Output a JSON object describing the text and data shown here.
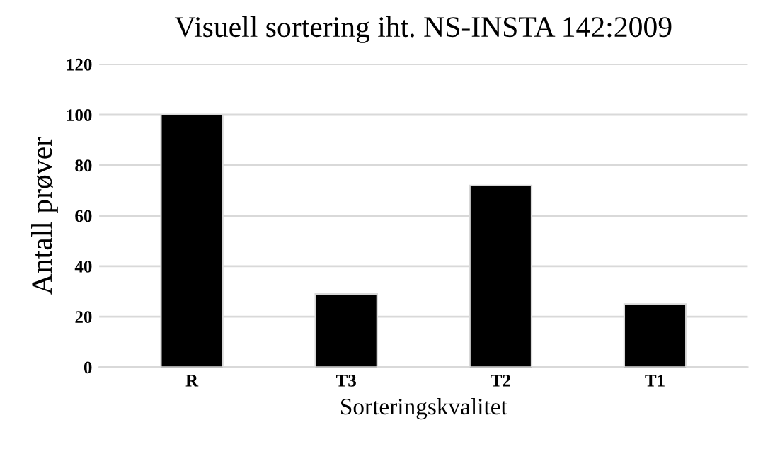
{
  "chart_data": {
    "type": "bar",
    "title": "Visuell sortering iht. NS-INSTA 142:2009",
    "xlabel": "Sorteringskvalitet",
    "ylabel": "Antall prøver",
    "categories": [
      "R",
      "T3",
      "T2",
      "T1"
    ],
    "values": [
      100,
      29,
      72,
      25
    ],
    "color": "#000000",
    "ylim": [
      0,
      120
    ],
    "yticks": [
      0,
      20,
      40,
      60,
      80,
      100,
      120
    ],
    "grid": "y",
    "legend": false
  }
}
